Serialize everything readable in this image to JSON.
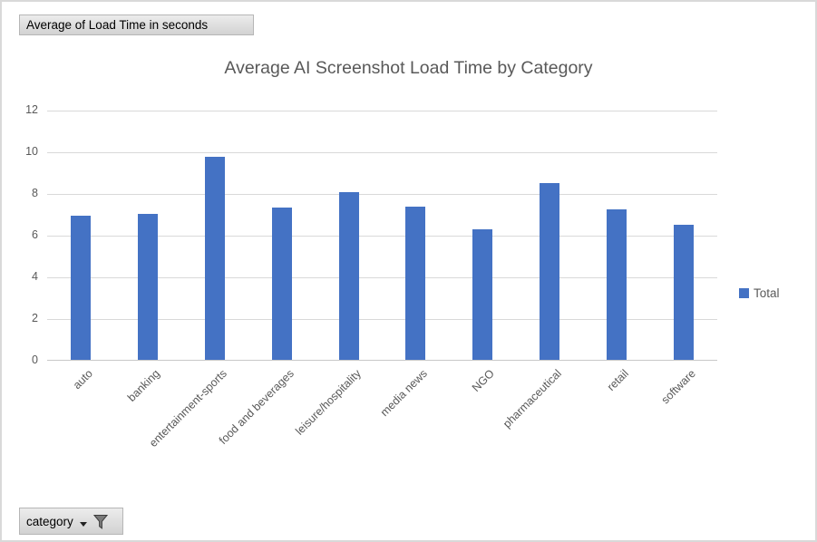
{
  "chart_data": {
    "type": "bar",
    "title": "Average AI Screenshot Load Time by Category",
    "categories": [
      "auto",
      "banking",
      "entertainment-sports",
      "food and beverages",
      "leisure/hospitality",
      "media news",
      "NGO",
      "pharmaceutical",
      "retail",
      "software"
    ],
    "series": [
      {
        "name": "Total",
        "values": [
          6.9,
          7.0,
          9.75,
          7.3,
          8.05,
          7.35,
          6.25,
          8.5,
          7.2,
          6.5
        ]
      }
    ],
    "xlabel": "",
    "ylabel": "",
    "ylim": [
      0,
      12
    ],
    "yticks": [
      0,
      2,
      4,
      6,
      8,
      10,
      12
    ],
    "grid": true,
    "legend_position": "right",
    "bar_color": "#4472C4"
  },
  "pivot_field_buttons": {
    "value_button_label": "Average of Load Time in seconds",
    "category_button_label": "category"
  },
  "icons": {
    "category_filter": "funnel-icon",
    "category_dropdown": "dropdown-arrow-icon",
    "legend_marker": "legend-swatch-icon"
  },
  "colors": {
    "bar": "#4472C4",
    "gridline": "#D9D9D9",
    "axis_line": "#C9C9C9",
    "text": "#595959"
  }
}
